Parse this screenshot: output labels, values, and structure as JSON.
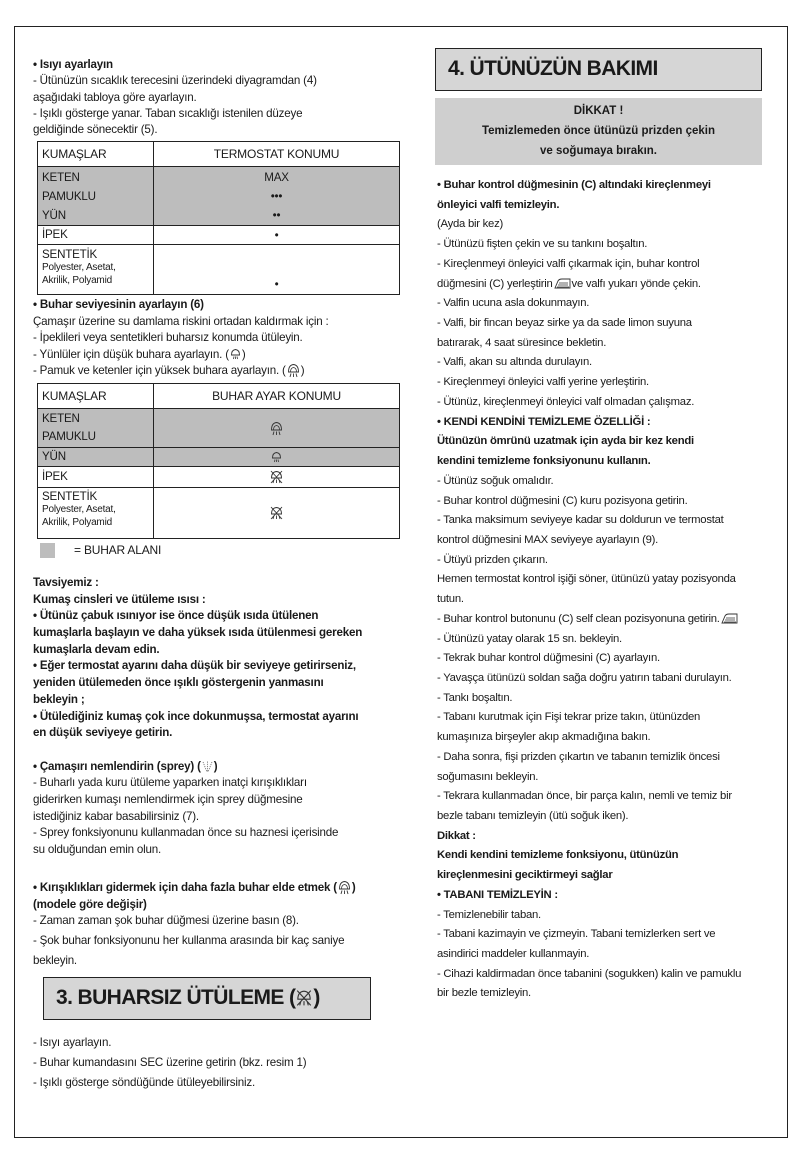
{
  "left": {
    "heat": [
      {
        "t": "• Isıyı ayarlayın",
        "b": true
      },
      {
        "t": "- Ütünüzün sıcaklık terecesini üzerindeki diyagramdan (4)"
      },
      {
        "t": "aşağıdaki tabloya göre ayarlayın."
      },
      {
        "t": "- Işıklı gösterge yanar. Taban sıcaklığı istenilen düzeye"
      },
      {
        "t": "geldiğinde sönecektir (5)."
      }
    ],
    "table1": {
      "headers": [
        "KUMAŞLAR",
        "TERMOSTAT KONUMU"
      ],
      "rows": [
        {
          "fabric": "KETEN",
          "setting": "MAX"
        },
        {
          "fabric": "PAMUKLU",
          "setting": "•••"
        },
        {
          "fabric": "YÜN",
          "setting": "••"
        },
        {
          "fabric": "İPEK",
          "setting": "•"
        },
        {
          "fabric": "SENTETİK",
          "sub1": "Polyester, Asetat,",
          "sub2": "Akrilik, Polyamid",
          "setting": "•"
        }
      ]
    },
    "steam": [
      {
        "t": "• Buhar seviyesinin ayarlayın (6)",
        "b": true
      },
      {
        "t": "Çamaşır üzerine su damlama riskini ortadan kaldırmak için :"
      },
      {
        "t": "- İpeklileri veya sentetikleri buharsız konumda ütüleyin."
      },
      {
        "t": "- Yünlüler için düşük buhara ayarlayın. (",
        "icon": "steam-low",
        "a": ")"
      },
      {
        "t": "- Pamuk ve ketenler için yüksek buhara ayarlayın. (",
        "icon": "steam-high",
        "a": ")"
      }
    ],
    "table2": {
      "headers": [
        "KUMAŞLAR",
        "BUHAR AYAR KONUMU"
      ],
      "rows": [
        {
          "fabric": "KETEN",
          "fabric2": "PAMUKLU",
          "icon": "steam-high"
        },
        {
          "fabric": "YÜN",
          "icon": "steam-low"
        },
        {
          "fabric": "İPEK",
          "icon": "no-steam"
        },
        {
          "fabric": "SENTETİK",
          "sub1": "Polyester, Asetat,",
          "sub2": "Akrilik, Polyamid",
          "icon": "no-steam"
        }
      ],
      "legend": "= BUHAR ALANI",
      "steam_area_color": "#bdbdbd"
    },
    "advice": [
      {
        "t": "Tavsiyemiz :",
        "b": true
      },
      {
        "t": "Kumaş cinsleri ve ütüleme ısısı :",
        "b": true
      },
      {
        "t": "• Ütünüz çabuk ısınıyor ise önce düşük ısıda ütülenen",
        "b": true
      },
      {
        "t": "kumaşlarla başlayın ve daha yüksek ısıda ütülenmesi gereken",
        "b": true
      },
      {
        "t": "kumaşlarla devam edin.",
        "b": true
      },
      {
        "t": "• Eğer termostat ayarını daha düşük bir seviyeye getirirseniz,",
        "b": true
      },
      {
        "t": "yeniden ütülemeden önce ışıklı göstergenin yanmasını",
        "b": true
      },
      {
        "t": "bekleyin ;",
        "b": true
      },
      {
        "t": "• Ütülediğiniz kumaş çok ince dokunmuşsa, termostat ayarını",
        "b": true
      },
      {
        "t": "en düşük seviyeye getirin.",
        "b": true
      },
      {
        "t": ""
      },
      {
        "t": "• Çamaşırı nemlendirin (sprey) (",
        "b": true,
        "icon": "spray",
        "a": ")"
      },
      {
        "t": "- Buharlı yada kuru ütüleme yaparken inatçi kırışıklıkları"
      },
      {
        "t": "giderirken kumaşı nemlendirmek için sprey düğmesine"
      },
      {
        "t": "istediğiniz kabar basabilirsiniz (7)."
      },
      {
        "t": "- Sprey fonksiyonunu kullanmadan önce su haznesi içerisinde"
      },
      {
        "t": "su olduğundan emin olun."
      }
    ],
    "shock_title": [
      {
        "t": "• Kırışıklıkları gidermek için daha fazla buhar elde etmek (",
        "b": true,
        "icon": "steam-high",
        "a": ")"
      },
      {
        "t": "(modele göre değişir)",
        "b": true
      }
    ],
    "shock": [
      {
        "t": "- Zaman zaman şok buhar düğmesi üzerine basın (8)."
      },
      {
        "t": "- Şok buhar fonksiyonunu her kullanma arasında bir kaç saniye"
      },
      {
        "t": "bekleyin."
      }
    ],
    "section3_title": "3. BUHARSIZ ÜTÜLEME (",
    "section3_close": ")",
    "dry": [
      {
        "t": "- Isıyı ayarlayın."
      },
      {
        "t": "- Buhar kumandasını SEC üzerine getirin (bkz. resim 1)"
      },
      {
        "t": "- Işıklı gösterge söndüğünde ütüleyebilirsiniz."
      }
    ]
  },
  "right": {
    "section4_title": "4. ÜTÜNÜZÜN BAKIMI",
    "warning": [
      "DİKKAT !",
      "Temizlemeden önce ütünüzü prizden çekin",
      "ve soğumaya bırakın."
    ],
    "body": [
      {
        "t": "• Buhar kontrol düğmesinin (C) altındaki kireçlenmeyi",
        "b": true
      },
      {
        "t": "önleyici valfi temizleyin.",
        "b": true
      },
      {
        "t": "(Ayda bir kez)"
      },
      {
        "t": "- Ütünüzü fişten çekin ve su tankını boşaltın."
      },
      {
        "t": "- Kireçlenmeyi önleyici valfi çıkarmak için, buhar kontrol"
      },
      {
        "t": "düğmesini (C) yerleştirin",
        "icon": "self-clean",
        "a": "ve valfı yukarı yönde çekin."
      },
      {
        "t": "- Valfin ucuna asla dokunmayın."
      },
      {
        "t": "- Valfi, bir fincan beyaz sirke ya da sade limon suyuna"
      },
      {
        "t": "batırarak, 4 saat süresince bekletin."
      },
      {
        "t": "- Valfi, akan su altında durulayın."
      },
      {
        "t": "- Kireçlenmeyi önleyici valfi yerine yerleştirin."
      },
      {
        "t": "- Ütünüz, kireçlenmeyi önleyici valf olmadan çalışmaz."
      },
      {
        "t": "• KENDİ KENDİNİ TEMİZLEME ÖZELLİĞİ :",
        "b": true
      },
      {
        "t": "Ütünüzün ömrünü uzatmak için ayda bir kez kendi",
        "b": true
      },
      {
        "t": "kendini temizleme fonksiyonunu kullanın.",
        "b": true
      },
      {
        "t": "- Ütünüz soğuk omalıdır."
      },
      {
        "t": "- Buhar kontrol düğmesini (C) kuru pozisyona getirin."
      },
      {
        "t": "- Tanka maksimum seviyeye kadar su doldurun ve termostat"
      },
      {
        "t": "kontrol düğmesini MAX seviyeye ayarlayın (9)."
      },
      {
        "t": "- Ütüyü prizden çıkarın."
      },
      {
        "t": "Hemen termostat kontrol işiği söner, ütünüzü yatay pozisyonda"
      },
      {
        "t": "tutun."
      },
      {
        "t": "- Buhar kontrol butonunu (C) self clean pozisyonuna getirin.",
        "icon": "self-clean",
        "a": ""
      },
      {
        "t": "- Ütünüzü yatay olarak 15 sn. bekleyin."
      },
      {
        "t": "- Tekrak buhar kontrol düğmesini (C) ayarlayın."
      },
      {
        "t": "- Yavaşça ütünüzü soldan sağa doğru yatırın tabani durulayın."
      },
      {
        "t": "- Tankı boşaltın."
      },
      {
        "t": "- Tabanı kurutmak için Fişi tekrar prize takın, ütünüzden"
      },
      {
        "t": "kumaşınıza birşeyler akıp akmadığına bakın."
      },
      {
        "t": "- Daha sonra, fişi prizden çıkartın ve tabanın temizlik öncesi"
      },
      {
        "t": "soğumasını bekleyin."
      },
      {
        "t": "- Tekrara kullanmadan önce, bir parça kalın, nemli ve temiz bir"
      },
      {
        "t": "bezle tabanı temizleyin (ütü soğuk iken)."
      },
      {
        "t": "Dikkat :",
        "b": true
      },
      {
        "t": "Kendi kendini temizleme fonksiyonu, ütünüzün",
        "b": true
      },
      {
        "t": "kireçlenmesini geciktirmeyi sağlar",
        "b": true
      },
      {
        "t": "• TABANI TEMİZLEYİN :",
        "b": true
      },
      {
        "t": "- Temizlenebilir taban."
      },
      {
        "t": "- Tabani kazimayin ve çizmeyin. Tabani temizlerken sert ve"
      },
      {
        "t": "asindirici maddeler kullanmayin."
      },
      {
        "t": "- Cihazi kaldirmadan önce tabanini (sogukken) kalin ve pamuklu"
      },
      {
        "t": "bir bezle temizleyin."
      }
    ]
  }
}
